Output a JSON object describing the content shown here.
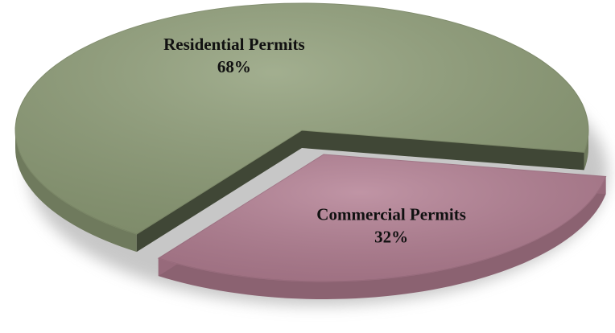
{
  "chart_data": {
    "type": "pie",
    "categories": [
      "Commercial Permits",
      "Residential Permits"
    ],
    "values": [
      32,
      68
    ],
    "value_labels": [
      "32%",
      "68%"
    ],
    "colors": [
      "#b27d91",
      "#8e9d77"
    ]
  }
}
